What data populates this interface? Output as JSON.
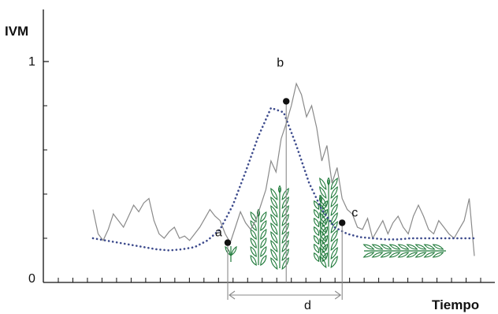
{
  "chart_data": {
    "type": "line",
    "ylabel": "IVM",
    "xlabel": "Tiempo",
    "ytick_labels": [
      "0",
      "1"
    ],
    "ylim": [
      0,
      1
    ],
    "x_tick_count": 30,
    "y_minor_ticks": [
      0.2,
      0.4,
      0.6,
      0.8
    ],
    "grid": false,
    "series": [
      {
        "style": "gray-solid",
        "x": [
          0.0,
          0.4,
          0.8,
          1.2,
          1.6,
          2.0,
          2.4,
          2.8,
          3.2,
          3.6,
          4.0,
          4.4,
          4.8,
          5.2,
          5.6,
          6.0,
          6.4,
          6.8,
          7.2,
          7.6,
          8.0,
          8.4,
          8.8,
          9.2,
          9.6,
          10.0,
          10.4,
          10.8,
          11.2,
          11.6,
          12.0,
          12.4,
          12.8,
          13.2,
          13.6,
          14.0,
          14.4,
          14.8,
          15.2,
          15.6,
          16.0,
          16.4,
          16.8,
          17.2,
          17.6,
          18.0,
          18.4,
          18.8,
          19.2,
          19.6,
          20.0,
          20.4,
          20.8,
          21.2,
          21.6,
          22.0,
          22.4,
          22.8,
          23.2,
          23.6,
          24.0,
          24.4,
          24.8,
          25.2,
          25.6,
          26.0,
          26.4,
          26.8,
          27.2,
          27.6,
          28.0,
          28.4,
          28.8,
          29.2,
          29.6,
          30.0
        ],
        "y": [
          0.33,
          0.22,
          0.19,
          0.24,
          0.31,
          0.28,
          0.25,
          0.3,
          0.35,
          0.32,
          0.36,
          0.38,
          0.28,
          0.22,
          0.2,
          0.23,
          0.25,
          0.2,
          0.21,
          0.19,
          0.22,
          0.25,
          0.29,
          0.33,
          0.3,
          0.28,
          0.22,
          0.18,
          0.25,
          0.32,
          0.27,
          0.24,
          0.28,
          0.35,
          0.42,
          0.55,
          0.5,
          0.65,
          0.72,
          0.8,
          0.9,
          0.85,
          0.75,
          0.8,
          0.7,
          0.55,
          0.62,
          0.45,
          0.52,
          0.38,
          0.33,
          0.31,
          0.25,
          0.24,
          0.29,
          0.2,
          0.24,
          0.28,
          0.22,
          0.27,
          0.3,
          0.25,
          0.22,
          0.3,
          0.35,
          0.3,
          0.24,
          0.22,
          0.28,
          0.25,
          0.22,
          0.2,
          0.24,
          0.28,
          0.38,
          0.12
        ]
      },
      {
        "style": "blue-dotted",
        "x": [
          0,
          1,
          2,
          3,
          4,
          5,
          6,
          7,
          8,
          9,
          10,
          11,
          12,
          13,
          14,
          15,
          16,
          17,
          18,
          19,
          20,
          21,
          22,
          23,
          24,
          25,
          26,
          27,
          28,
          29,
          30
        ],
        "y": [
          0.2,
          0.19,
          0.18,
          0.17,
          0.16,
          0.15,
          0.145,
          0.15,
          0.16,
          0.19,
          0.24,
          0.35,
          0.5,
          0.66,
          0.79,
          0.77,
          0.62,
          0.45,
          0.33,
          0.25,
          0.22,
          0.205,
          0.2,
          0.195,
          0.195,
          0.2,
          0.2,
          0.2,
          0.2,
          0.2,
          0.2
        ]
      }
    ],
    "points": [
      {
        "label": "a",
        "x": 10.6,
        "y": 0.18
      },
      {
        "label": "b",
        "x": 15.2,
        "y": 0.82
      },
      {
        "label": "c",
        "x": 19.6,
        "y": 0.27
      }
    ],
    "interval_label": "d"
  }
}
